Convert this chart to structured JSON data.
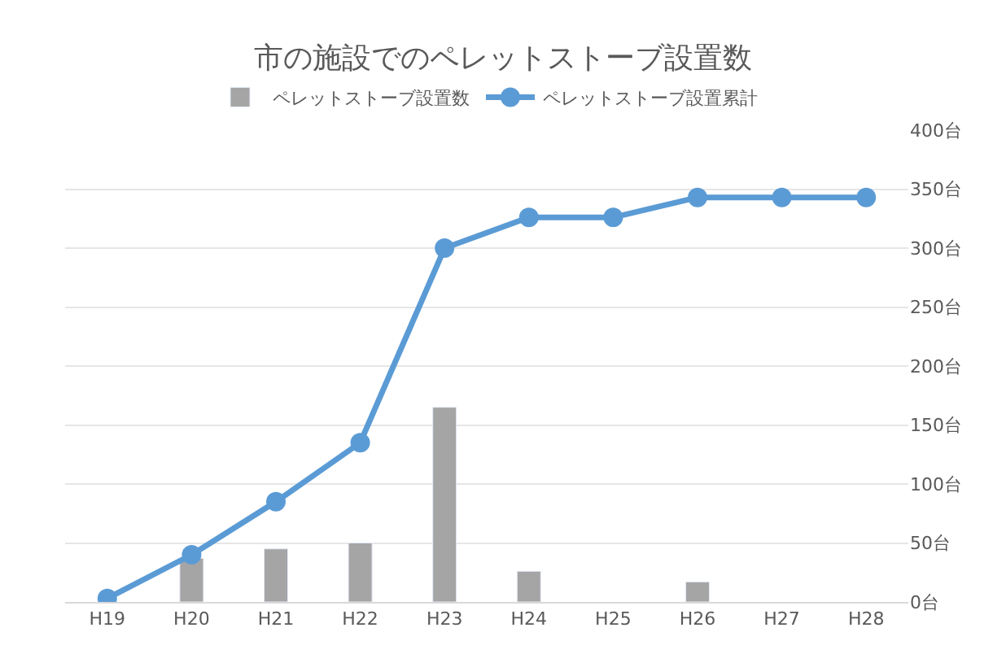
{
  "chart_data": {
    "type": "bar",
    "title": "市の施設でのペレットストーブ設置数",
    "categories": [
      "H19",
      "H20",
      "H21",
      "H22",
      "H23",
      "H24",
      "H25",
      "H26",
      "H27",
      "H28"
    ],
    "series": [
      {
        "name": "ペレットストーブ設置数",
        "color": "#a5a5a5",
        "values": [
          null,
          37,
          45,
          50,
          165,
          26,
          null,
          17,
          null,
          null
        ]
      },
      {
        "name": "ペレットストーブ設置累計",
        "type": "line",
        "color": "#5b9bd5",
        "marker": "circle",
        "values": [
          3,
          40,
          85,
          135,
          300,
          326,
          326,
          343,
          343,
          343
        ]
      }
    ],
    "ylim": [
      0,
      400
    ],
    "yticks": [
      {
        "value": 0,
        "label": "0台"
      },
      {
        "value": 50,
        "label": "50台"
      },
      {
        "value": 100,
        "label": "100台"
      },
      {
        "value": 150,
        "label": "150台"
      },
      {
        "value": 200,
        "label": "200台"
      },
      {
        "value": 250,
        "label": "250台"
      },
      {
        "value": 300,
        "label": "300台"
      },
      {
        "value": 350,
        "label": "350台"
      },
      {
        "value": 400,
        "label": "400台"
      }
    ],
    "grid": "y",
    "legend": "top"
  }
}
